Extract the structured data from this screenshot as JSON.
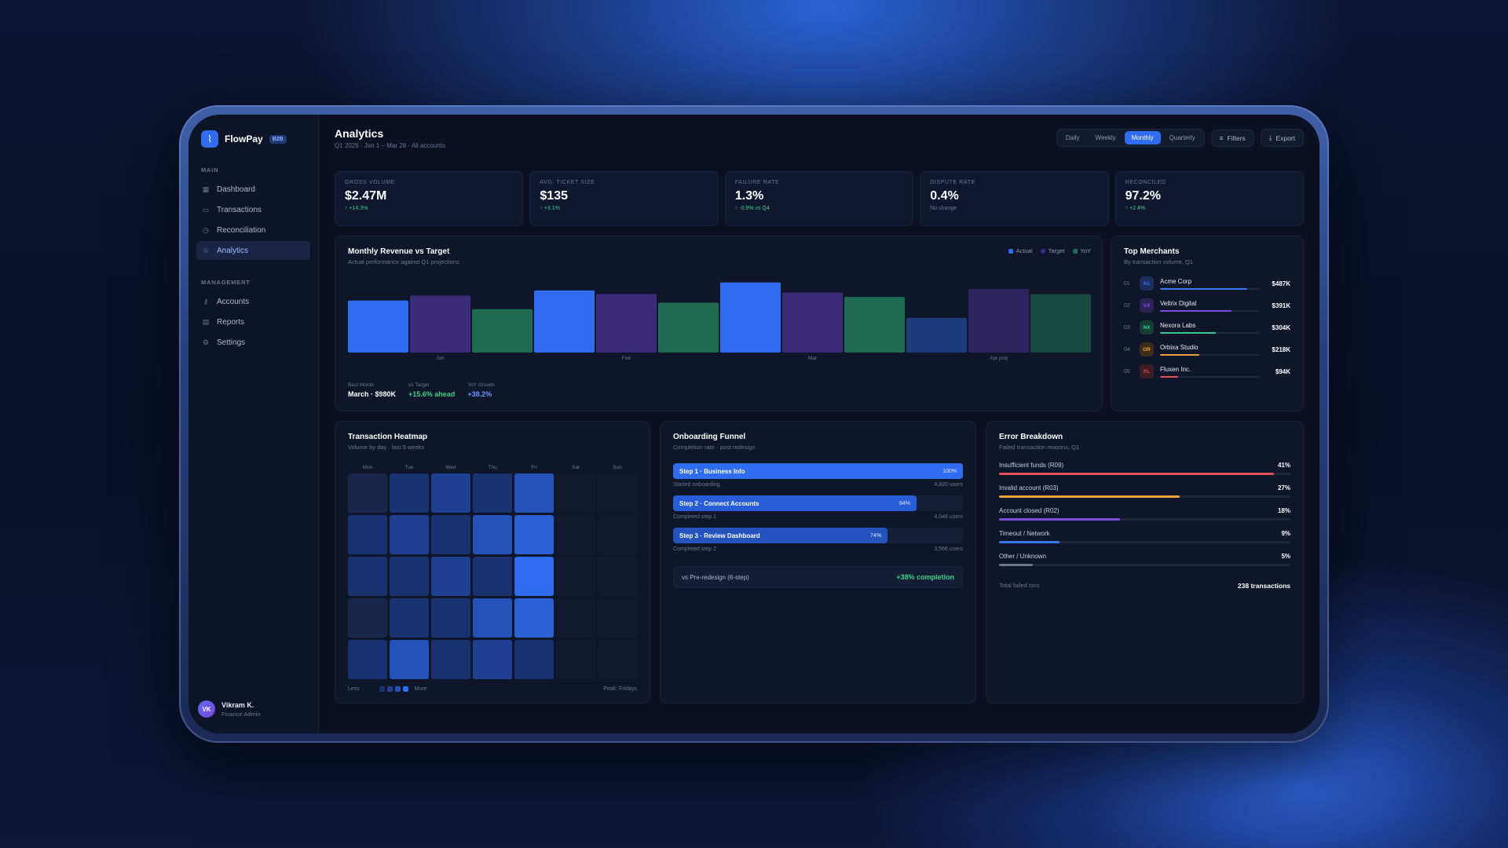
{
  "brand": {
    "name": "FlowPay",
    "badge": "B2B"
  },
  "sidebar": {
    "sections": [
      {
        "label": "MAIN",
        "items": [
          {
            "label": "Dashboard",
            "icon": "grid-icon",
            "active": false
          },
          {
            "label": "Transactions",
            "icon": "card-icon",
            "active": false
          },
          {
            "label": "Reconciliation",
            "icon": "clock-icon",
            "active": false
          },
          {
            "label": "Analytics",
            "icon": "star-icon",
            "active": true
          }
        ]
      },
      {
        "label": "MANAGEMENT",
        "items": [
          {
            "label": "Accounts",
            "icon": "key-icon",
            "active": false
          },
          {
            "label": "Reports",
            "icon": "document-icon",
            "active": false
          },
          {
            "label": "Settings",
            "icon": "gear-icon",
            "active": false
          }
        ]
      }
    ],
    "user": {
      "initials": "VK",
      "name": "Vikram K.",
      "role": "Finance Admin"
    }
  },
  "header": {
    "title": "Analytics",
    "subtitle": "Q1 2026 · Jan 1 – Mar 28 · All accounts",
    "periods": [
      "Daily",
      "Weekly",
      "Monthly",
      "Quarterly"
    ],
    "active_period": "Monthly",
    "filters_label": "Filters",
    "export_label": "Export"
  },
  "kpis": [
    {
      "label": "GROSS VOLUME",
      "value": "$2.47M",
      "delta": "↑ +14.3%",
      "tone": "up"
    },
    {
      "label": "AVG. TICKET SIZE",
      "value": "$135",
      "delta": "↑ +3.1%",
      "tone": "up"
    },
    {
      "label": "FAILURE RATE",
      "value": "1.3%",
      "delta": "↑ -0.9% vs Q4",
      "tone": "up"
    },
    {
      "label": "DISPUTE RATE",
      "value": "0.4%",
      "delta": "No change",
      "tone": "neutral"
    },
    {
      "label": "RECONCILED",
      "value": "97.2%",
      "delta": "↑ +2.4%",
      "tone": "up"
    }
  ],
  "revenue": {
    "title": "Monthly Revenue vs Target",
    "subtitle": "Actual performance against Q1 projections",
    "stats": [
      {
        "label": "Best Month",
        "value": "March · $980K",
        "tone": "white"
      },
      {
        "label": "vs Target",
        "value": "+15.6% ahead",
        "tone": "green"
      },
      {
        "label": "YoY Growth",
        "value": "+38.2%",
        "tone": "blue"
      }
    ]
  },
  "chart_data": {
    "type": "bar",
    "categories": [
      "Jan",
      "Feb",
      "Mar",
      "Apr proj"
    ],
    "series": [
      {
        "name": "Actual",
        "color": "#2f6cf0",
        "values": [
          72,
          86,
          97,
          48
        ]
      },
      {
        "name": "Target",
        "color": "#3a2c78",
        "values": [
          79,
          81,
          83,
          88
        ]
      },
      {
        "name": "YoY",
        "color": "#1e6b52",
        "values": [
          60,
          69,
          77,
          81
        ]
      }
    ],
    "ylim": [
      0,
      100
    ],
    "legend": "top-right"
  },
  "merchants": {
    "title": "Top Merchants",
    "subtitle": "By transaction volume, Q1",
    "items": [
      {
        "rank": "01",
        "initials": "AC",
        "name": "Acme Corp",
        "value": "$487K",
        "share": 0.88,
        "color": "#3a78f2",
        "badge_bg": "#1c2e5e"
      },
      {
        "rank": "02",
        "initials": "VX",
        "name": "Veltrix Digital",
        "value": "$391K",
        "share": 0.72,
        "color": "#7b4fe0",
        "badge_bg": "#2e2357"
      },
      {
        "rank": "03",
        "initials": "NX",
        "name": "Nexora Labs",
        "value": "$304K",
        "share": 0.56,
        "color": "#2ecc8a",
        "badge_bg": "#163d33"
      },
      {
        "rank": "04",
        "initials": "OR",
        "name": "Orbixa Studio",
        "value": "$218K",
        "share": 0.4,
        "color": "#f0a13a",
        "badge_bg": "#3d2c17"
      },
      {
        "rank": "05",
        "initials": "FL",
        "name": "Fluxen Inc.",
        "value": "$94K",
        "share": 0.18,
        "color": "#e0505a",
        "badge_bg": "#3d1c24"
      }
    ]
  },
  "heatmap": {
    "title": "Transaction Heatmap",
    "subtitle": "Volume by day · last 5 weeks",
    "days": [
      "Mon",
      "Tue",
      "Wed",
      "Thu",
      "Fri",
      "Sat",
      "Sun"
    ],
    "levels": [
      [
        1,
        2,
        3,
        2,
        4,
        0,
        0
      ],
      [
        2,
        3,
        2,
        4,
        5,
        0,
        0
      ],
      [
        2,
        2,
        3,
        2,
        6,
        0,
        0
      ],
      [
        1,
        2,
        2,
        4,
        5,
        0,
        0
      ],
      [
        2,
        4,
        2,
        3,
        2,
        0,
        0
      ]
    ],
    "less_label": "Less",
    "more_label": "More",
    "peak_label": "Peak: Fridays"
  },
  "funnel": {
    "title": "Onboarding Funnel",
    "subtitle": "Completion rate · post redesign",
    "steps": [
      {
        "name": "Step 1 · Business Info",
        "pct": "100%",
        "rate": 1.0,
        "caption": "Started onboarding",
        "users": "4,820 users"
      },
      {
        "name": "Step 2 · Connect Accounts",
        "pct": "84%",
        "rate": 0.84,
        "caption": "Completed step 1",
        "users": "4,048 users"
      },
      {
        "name": "Step 3 · Review Dashboard",
        "pct": "74%",
        "rate": 0.74,
        "caption": "Completed step 2",
        "users": "3,566 users"
      }
    ],
    "compare_label": "vs Pre-redesign (6-step)",
    "compare_value": "+38% completion"
  },
  "errors": {
    "title": "Error Breakdown",
    "subtitle": "Failed transaction reasons, Q1",
    "items": [
      {
        "label": "Insufficient funds (R09)",
        "pct": "41%",
        "share": 0.41,
        "color": "#e0505a"
      },
      {
        "label": "Invalid account (R03)",
        "pct": "27%",
        "share": 0.27,
        "color": "#f0a13a"
      },
      {
        "label": "Account closed (R02)",
        "pct": "18%",
        "share": 0.18,
        "color": "#7b4fe0"
      },
      {
        "label": "Timeout / Network",
        "pct": "9%",
        "share": 0.09,
        "color": "#3a78f2"
      },
      {
        "label": "Other / Unknown",
        "pct": "5%",
        "share": 0.05,
        "color": "#6b7891"
      }
    ],
    "total_label": "Total failed txns",
    "total_value": "238 transactions"
  }
}
